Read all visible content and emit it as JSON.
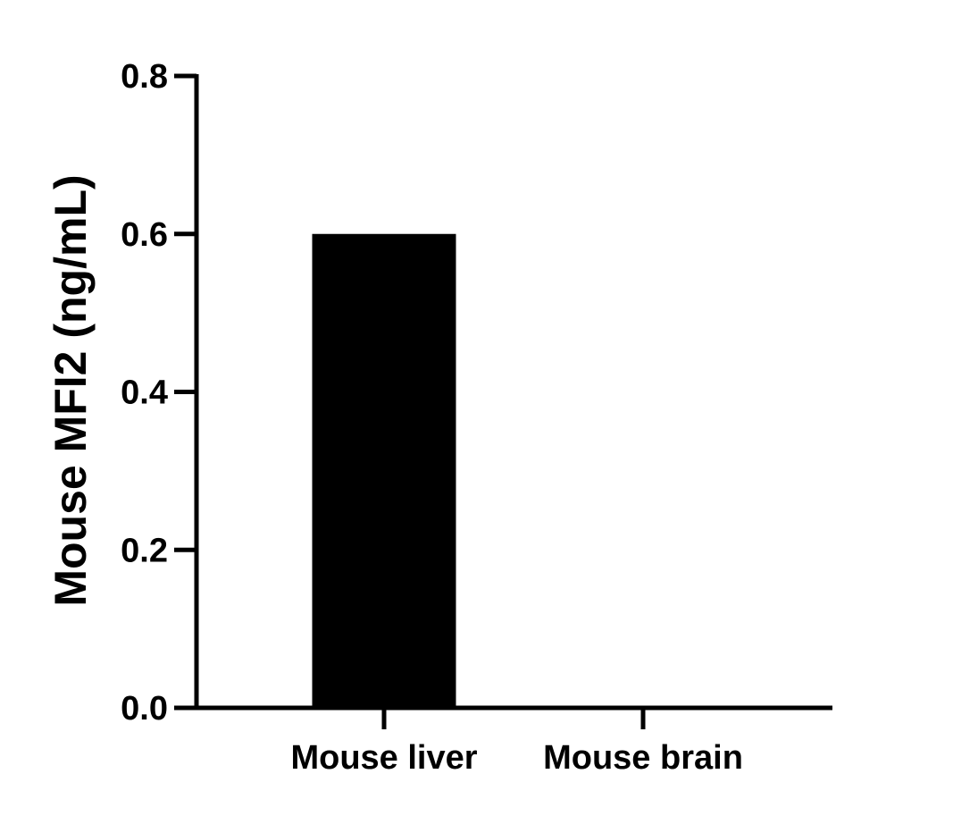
{
  "chart_data": {
    "type": "bar",
    "title": "",
    "xlabel": "",
    "ylabel": "Mouse MFI2 (ng/mL)",
    "categories": [
      "Mouse liver",
      "Mouse brain"
    ],
    "values": [
      0.6,
      0.0
    ],
    "ylim": [
      0,
      0.8
    ],
    "yticks": [
      "0.0",
      "0.2",
      "0.4",
      "0.6",
      "0.8"
    ],
    "bar_color": "#000000",
    "grid": false,
    "legend": "none"
  }
}
